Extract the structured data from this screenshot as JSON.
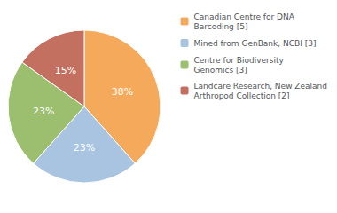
{
  "chart_data": {
    "type": "pie",
    "categories": [
      "Canadian Centre for DNA\nBarcoding [5]",
      "Mined from GenBank, NCBI [3]",
      "Centre for Biodiversity\nGenomics [3]",
      "Landcare Research, New Zealand\nArthropod Collection [2]"
    ],
    "values": [
      38,
      23,
      23,
      15
    ],
    "value_labels": [
      "38%",
      "23%",
      "23%",
      "15%"
    ],
    "colors": [
      "#F5A95A",
      "#A8C4E0",
      "#9BBF6E",
      "#C47060"
    ],
    "data_labels": true,
    "legend": "right"
  }
}
